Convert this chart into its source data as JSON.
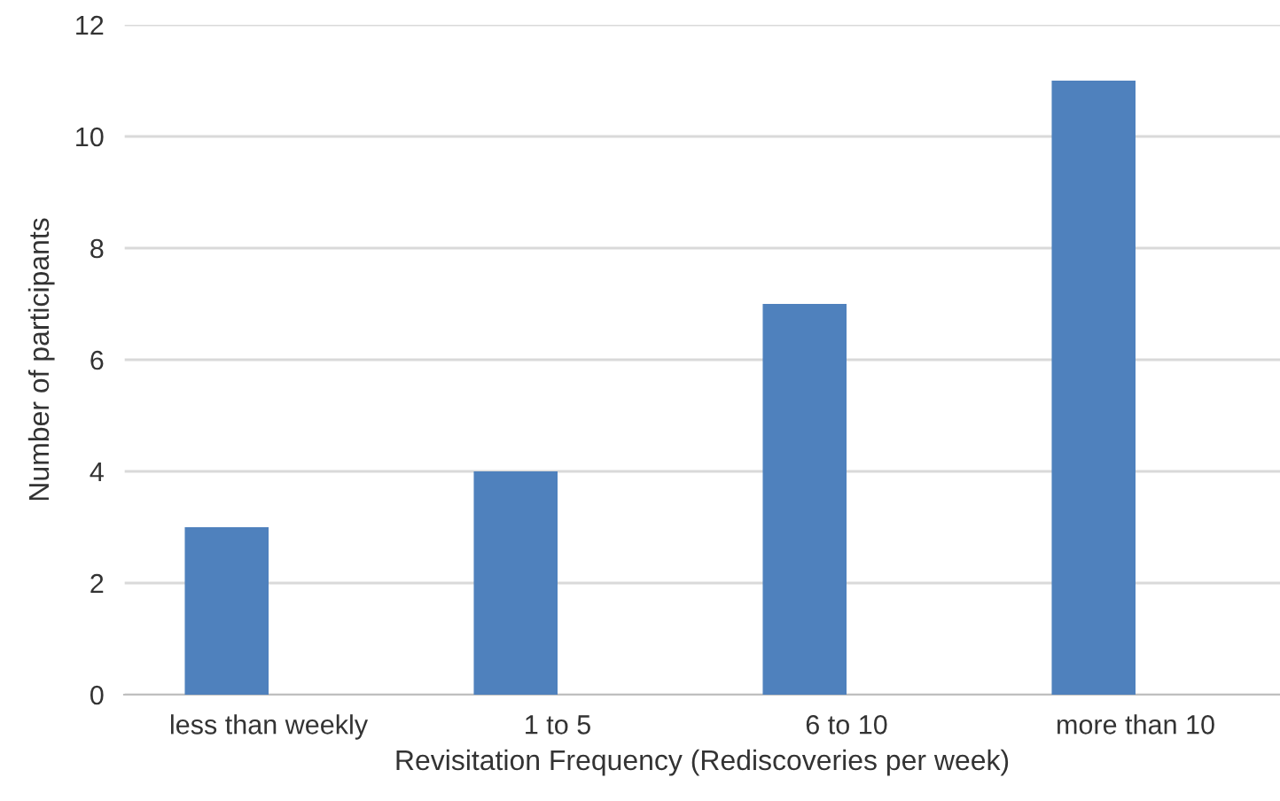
{
  "chart_data": {
    "type": "bar",
    "xlabel": "Revisitation Frequency (Rediscoveries per week)",
    "ylabel": "Number of participants",
    "categories": [
      "less than weekly",
      "1 to 5",
      "6 to 10",
      "more than 10"
    ],
    "values": [
      3,
      4,
      7,
      11
    ],
    "color": "#4f81bd",
    "ylim": [
      0,
      12
    ],
    "yticks": [
      0,
      2,
      4,
      6,
      8,
      10,
      12
    ],
    "grid": "y"
  }
}
